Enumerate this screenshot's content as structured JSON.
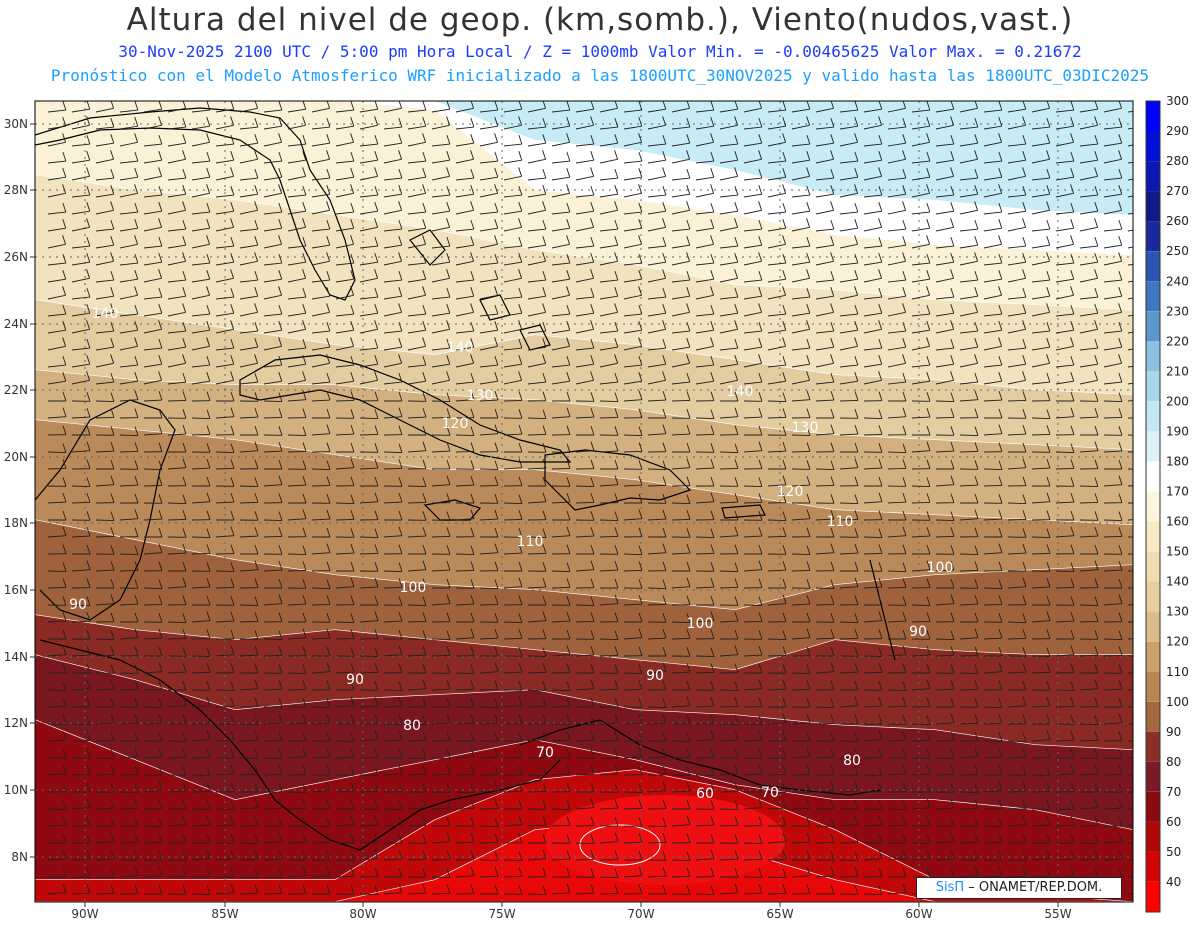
{
  "header": {
    "title": "Altura del nivel de geop. (km,somb.), Viento(nudos,vast.)",
    "subtitle_line1": "30-Nov-2025 2100 UTC / 5:00 pm Hora Local / Z = 1000mb Valor Min. = -0.00465625  Valor Max. = 0.21672",
    "subtitle_line2": "Pronóstico con el Modelo Atmosferico WRF inicializado a las 1800UTC_30NOV2025 y valido hasta las  1800UTC_03DIC2025"
  },
  "axes": {
    "lat_labels": [
      "30N",
      "28N",
      "26N",
      "24N",
      "22N",
      "20N",
      "18N",
      "16N",
      "14N",
      "12N",
      "10N",
      "8N"
    ],
    "lon_labels": [
      "90W",
      "85W",
      "80W",
      "75W",
      "70W",
      "65W",
      "60W",
      "55W"
    ]
  },
  "colorbar": {
    "labels": [
      "300",
      "290",
      "280",
      "270",
      "260",
      "250",
      "240",
      "230",
      "220",
      "210",
      "200",
      "190",
      "180",
      "170",
      "160",
      "150",
      "140",
      "130",
      "120",
      "110",
      "100",
      "90",
      "80",
      "70",
      "60",
      "50",
      "40"
    ],
    "colors": [
      "#0000ff",
      "#0010d8",
      "#0a18b0",
      "#101a86",
      "#1a2a9c",
      "#2b55b0",
      "#3f78c0",
      "#5a98cc",
      "#8cc0e0",
      "#a8d8ea",
      "#c4e8f2",
      "#dcf2f8",
      "#ffffff",
      "#fdf6dc",
      "#f7e9c4",
      "#efdcb0",
      "#e8cfa0",
      "#dcbc88",
      "#cba06c",
      "#b88654",
      "#a46840",
      "#8a3028",
      "#7a1a24",
      "#8a0a10",
      "#b00808",
      "#d40404",
      "#ff0000"
    ]
  },
  "bands": {
    "colors": [
      "#c8ecf6",
      "#ffffff",
      "#fbf1d6",
      "#f1e3be",
      "#e3cca0",
      "#d2b080",
      "#bb8a5a",
      "#a0623c",
      "#8a2a22",
      "#7a1620",
      "#8e0a10",
      "#c00808",
      "#e80808"
    ],
    "labels": [
      "190",
      "180",
      "160",
      "150",
      "140",
      "130",
      "120",
      "110",
      "100",
      "90",
      "80",
      "70",
      "60"
    ]
  },
  "credit": {
    "logo": "SisΠ",
    "text": "– ONAMET/REP.DOM."
  }
}
